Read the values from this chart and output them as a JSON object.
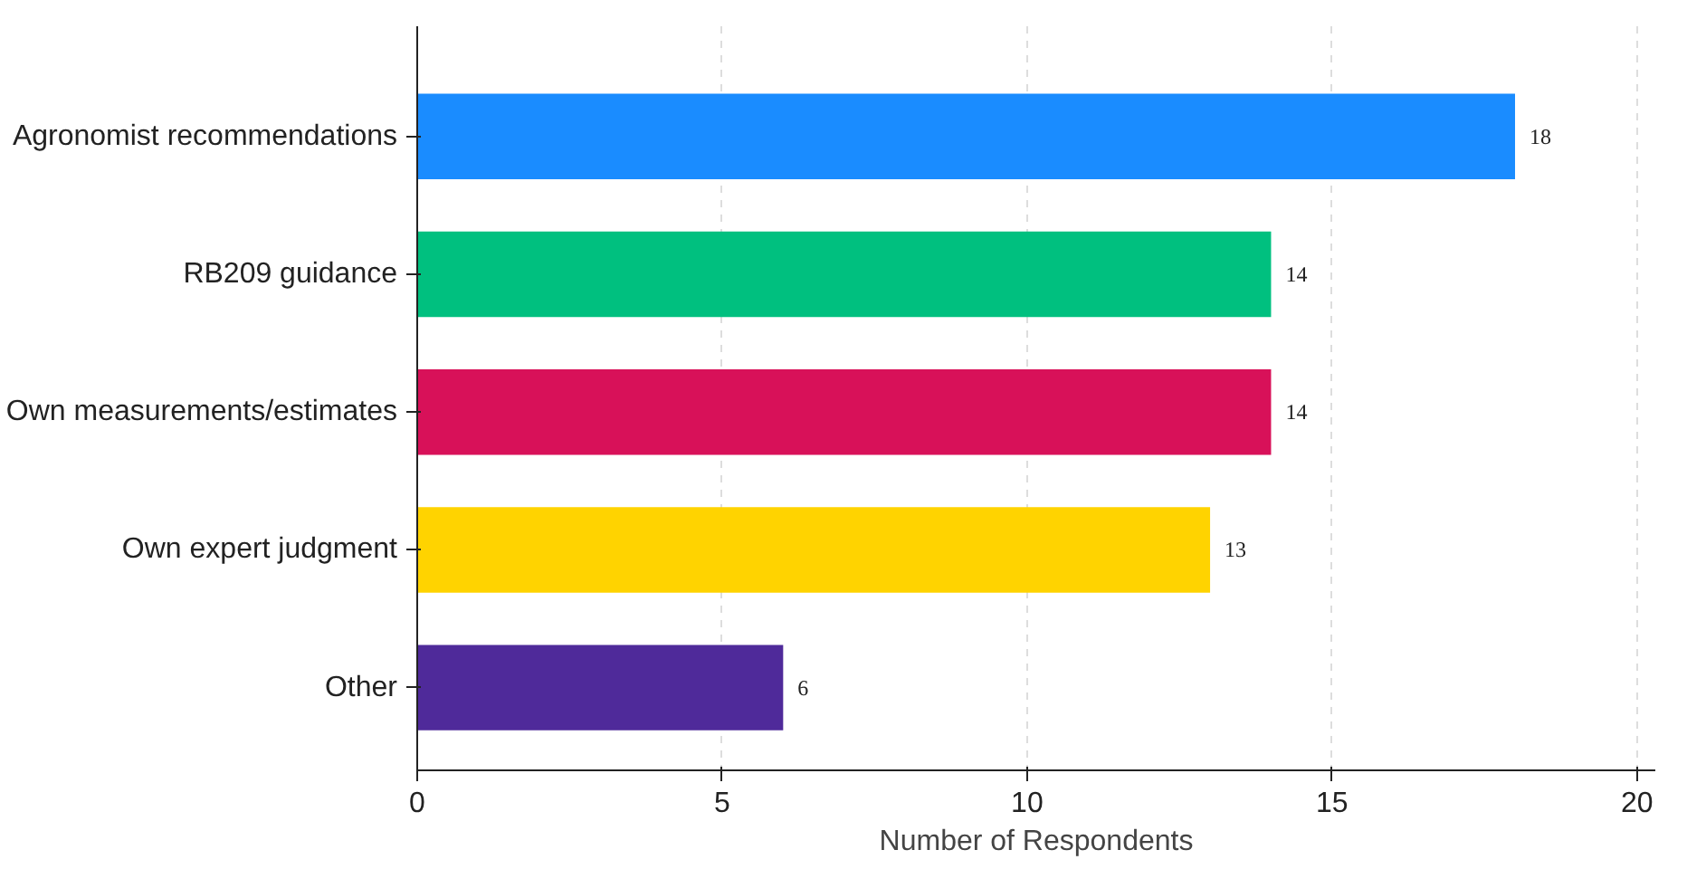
{
  "chart_data": {
    "type": "bar",
    "orientation": "horizontal",
    "xlabel": "Number of Respondents",
    "categories": [
      "Agronomist recommendations",
      "RB209 guidance",
      "Own measurements/estimates",
      "Own expert judgment",
      "Other"
    ],
    "values": [
      18,
      14,
      14,
      13,
      6
    ],
    "colors": [
      "#1a8cff",
      "#00c07f",
      "#d81159",
      "#ffd300",
      "#4f2a9a"
    ],
    "xlim": [
      0,
      20.3
    ],
    "xticks": [
      0,
      5,
      10,
      15,
      20
    ],
    "grid": "x",
    "data_labels": true
  }
}
